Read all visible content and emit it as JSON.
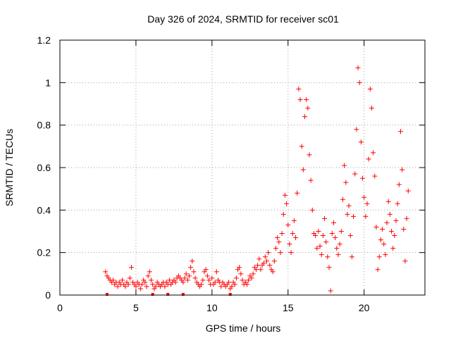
{
  "chart_data": {
    "type": "scatter",
    "title": "Day 326 of 2024, SRMTID for receiver sc01",
    "xlabel": "GPS time / hours",
    "ylabel": "SRMTID / TECUs",
    "xlim": [
      0,
      24
    ],
    "ylim": [
      0,
      1.2
    ],
    "xticks": [
      0,
      5,
      10,
      15,
      20
    ],
    "xtick_labels": [
      "0",
      "5",
      "10",
      "15",
      "20"
    ],
    "yticks": [
      0,
      0.2,
      0.4,
      0.6,
      0.8,
      1,
      1.2
    ],
    "ytick_labels": [
      "0",
      "0.2",
      "0.4",
      "0.6",
      "0.8",
      "1",
      "1.2"
    ],
    "grid": true,
    "marker": "+",
    "color": "#ff0000",
    "series": [
      {
        "name": "SRMTID",
        "points": [
          [
            3.0,
            0.11
          ],
          [
            3.1,
            0.09
          ],
          [
            3.2,
            0.08
          ],
          [
            3.3,
            0.07
          ],
          [
            3.4,
            0.06
          ],
          [
            3.5,
            0.07
          ],
          [
            3.6,
            0.05
          ],
          [
            3.7,
            0.06
          ],
          [
            3.8,
            0.04
          ],
          [
            3.9,
            0.06
          ],
          [
            4.0,
            0.05
          ],
          [
            4.1,
            0.07
          ],
          [
            4.2,
            0.05
          ],
          [
            4.3,
            0.04
          ],
          [
            4.4,
            0.06
          ],
          [
            4.5,
            0.05
          ],
          [
            4.6,
            0.08
          ],
          [
            4.7,
            0.13
          ],
          [
            4.8,
            0.06
          ],
          [
            4.9,
            0.05
          ],
          [
            5.0,
            0.04
          ],
          [
            5.1,
            0.06
          ],
          [
            5.2,
            0.05
          ],
          [
            5.3,
            0.03
          ],
          [
            5.4,
            0.05
          ],
          [
            5.5,
            0.07
          ],
          [
            5.6,
            0.06
          ],
          [
            5.7,
            0.04
          ],
          [
            5.8,
            0.09
          ],
          [
            5.9,
            0.11
          ],
          [
            6.0,
            0.07
          ],
          [
            6.1,
            0.05
          ],
          [
            6.2,
            0.03
          ],
          [
            6.3,
            0.04
          ],
          [
            6.4,
            0.06
          ],
          [
            6.5,
            0.05
          ],
          [
            6.6,
            0.04
          ],
          [
            6.7,
            0.05
          ],
          [
            6.8,
            0.06
          ],
          [
            6.9,
            0.04
          ],
          [
            7.0,
            0.06
          ],
          [
            7.1,
            0.05
          ],
          [
            7.2,
            0.07
          ],
          [
            7.3,
            0.05
          ],
          [
            7.4,
            0.06
          ],
          [
            7.5,
            0.07
          ],
          [
            7.6,
            0.06
          ],
          [
            7.7,
            0.08
          ],
          [
            7.8,
            0.09
          ],
          [
            7.9,
            0.08
          ],
          [
            8.0,
            0.07
          ],
          [
            8.1,
            0.06
          ],
          [
            8.2,
            0.08
          ],
          [
            8.3,
            0.1
          ],
          [
            8.4,
            0.07
          ],
          [
            8.5,
            0.09
          ],
          [
            8.6,
            0.13
          ],
          [
            8.7,
            0.16
          ],
          [
            8.8,
            0.11
          ],
          [
            8.9,
            0.08
          ],
          [
            9.0,
            0.06
          ],
          [
            9.1,
            0.05
          ],
          [
            9.2,
            0.04
          ],
          [
            9.3,
            0.05
          ],
          [
            9.4,
            0.07
          ],
          [
            9.5,
            0.11
          ],
          [
            9.6,
            0.12
          ],
          [
            9.7,
            0.09
          ],
          [
            9.8,
            0.07
          ],
          [
            9.9,
            0.05
          ],
          [
            10.0,
            0.08
          ],
          [
            10.1,
            0.05
          ],
          [
            10.2,
            0.06
          ],
          [
            10.3,
            0.11
          ],
          [
            10.4,
            0.07
          ],
          [
            10.5,
            0.06
          ],
          [
            10.6,
            0.04
          ],
          [
            10.7,
            0.06
          ],
          [
            10.8,
            0.05
          ],
          [
            10.9,
            0.04
          ],
          [
            11.0,
            0.05
          ],
          [
            11.1,
            0.06
          ],
          [
            11.2,
            0.03
          ],
          [
            11.3,
            0.04
          ],
          [
            11.4,
            0.06
          ],
          [
            11.5,
            0.05
          ],
          [
            11.6,
            0.08
          ],
          [
            11.7,
            0.12
          ],
          [
            11.8,
            0.13
          ],
          [
            11.9,
            0.1
          ],
          [
            12.0,
            0.07
          ],
          [
            12.1,
            0.05
          ],
          [
            12.2,
            0.06
          ],
          [
            12.3,
            0.05
          ],
          [
            12.4,
            0.07
          ],
          [
            12.5,
            0.09
          ],
          [
            12.6,
            0.08
          ],
          [
            12.7,
            0.1
          ],
          [
            12.8,
            0.13
          ],
          [
            12.9,
            0.12
          ],
          [
            13.0,
            0.14
          ],
          [
            13.1,
            0.17
          ],
          [
            13.2,
            0.12
          ],
          [
            13.3,
            0.14
          ],
          [
            13.4,
            0.15
          ],
          [
            13.5,
            0.18
          ],
          [
            13.6,
            0.16
          ],
          [
            13.7,
            0.2
          ],
          [
            13.8,
            0.14
          ],
          [
            13.9,
            0.12
          ],
          [
            14.0,
            0.11
          ],
          [
            14.1,
            0.16
          ],
          [
            14.2,
            0.22
          ],
          [
            14.3,
            0.27
          ],
          [
            14.4,
            0.25
          ],
          [
            14.5,
            0.2
          ],
          [
            14.6,
            0.29
          ],
          [
            14.7,
            0.38
          ],
          [
            14.8,
            0.47
          ],
          [
            14.9,
            0.43
          ],
          [
            15.0,
            0.33
          ],
          [
            15.1,
            0.24
          ],
          [
            15.2,
            0.2
          ],
          [
            15.3,
            0.29
          ],
          [
            15.4,
            0.35
          ],
          [
            15.5,
            0.27
          ],
          [
            15.6,
            0.48
          ],
          [
            15.7,
            0.97
          ],
          [
            15.8,
            0.92
          ],
          [
            15.9,
            0.7
          ],
          [
            16.0,
            0.59
          ],
          [
            16.1,
            0.84
          ],
          [
            16.2,
            0.92
          ],
          [
            16.3,
            0.88
          ],
          [
            16.4,
            0.66
          ],
          [
            16.5,
            0.54
          ],
          [
            16.6,
            0.4
          ],
          [
            16.7,
            0.29
          ],
          [
            16.8,
            0.28
          ],
          [
            16.9,
            0.22
          ],
          [
            17.0,
            0.3
          ],
          [
            17.1,
            0.23
          ],
          [
            17.2,
            0.19
          ],
          [
            17.3,
            0.28
          ],
          [
            17.4,
            0.36
          ],
          [
            17.5,
            0.25
          ],
          [
            17.6,
            0.18
          ],
          [
            17.7,
            0.13
          ],
          [
            17.8,
            0.02
          ],
          [
            17.9,
            0.29
          ],
          [
            18.0,
            0.34
          ],
          [
            18.1,
            0.27
          ],
          [
            18.2,
            0.22
          ],
          [
            18.3,
            0.19
          ],
          [
            18.4,
            0.24
          ],
          [
            18.5,
            0.3
          ],
          [
            18.6,
            0.45
          ],
          [
            18.7,
            0.61
          ],
          [
            18.8,
            0.53
          ],
          [
            18.9,
            0.38
          ],
          [
            19.0,
            0.42
          ],
          [
            19.1,
            0.28
          ],
          [
            19.2,
            0.18
          ],
          [
            19.3,
            0.37
          ],
          [
            19.4,
            0.57
          ],
          [
            19.5,
            0.78
          ],
          [
            19.6,
            1.07
          ],
          [
            19.7,
            1.0
          ],
          [
            19.8,
            0.72
          ],
          [
            19.9,
            0.55
          ],
          [
            20.0,
            0.46
          ],
          [
            20.1,
            0.37
          ],
          [
            20.2,
            0.43
          ],
          [
            20.3,
            0.64
          ],
          [
            20.4,
            0.97
          ],
          [
            20.5,
            0.88
          ],
          [
            20.6,
            0.67
          ],
          [
            20.7,
            0.56
          ],
          [
            20.8,
            0.32
          ],
          [
            20.9,
            0.12
          ],
          [
            21.0,
            0.18
          ],
          [
            21.1,
            0.26
          ],
          [
            21.2,
            0.31
          ],
          [
            21.3,
            0.24
          ],
          [
            21.4,
            0.19
          ],
          [
            21.5,
            0.34
          ],
          [
            21.6,
            0.44
          ],
          [
            21.7,
            0.38
          ],
          [
            21.8,
            0.3
          ],
          [
            21.9,
            0.22
          ],
          [
            22.0,
            0.28
          ],
          [
            22.1,
            0.35
          ],
          [
            22.2,
            0.43
          ],
          [
            22.3,
            0.52
          ],
          [
            22.4,
            0.77
          ],
          [
            22.5,
            0.59
          ],
          [
            22.6,
            0.31
          ],
          [
            22.7,
            0.16
          ],
          [
            22.8,
            0.36
          ],
          [
            22.9,
            0.49
          ]
        ]
      }
    ],
    "points_on_axis": [
      3.1,
      6.1,
      7.1,
      8.1,
      11.2
    ]
  }
}
